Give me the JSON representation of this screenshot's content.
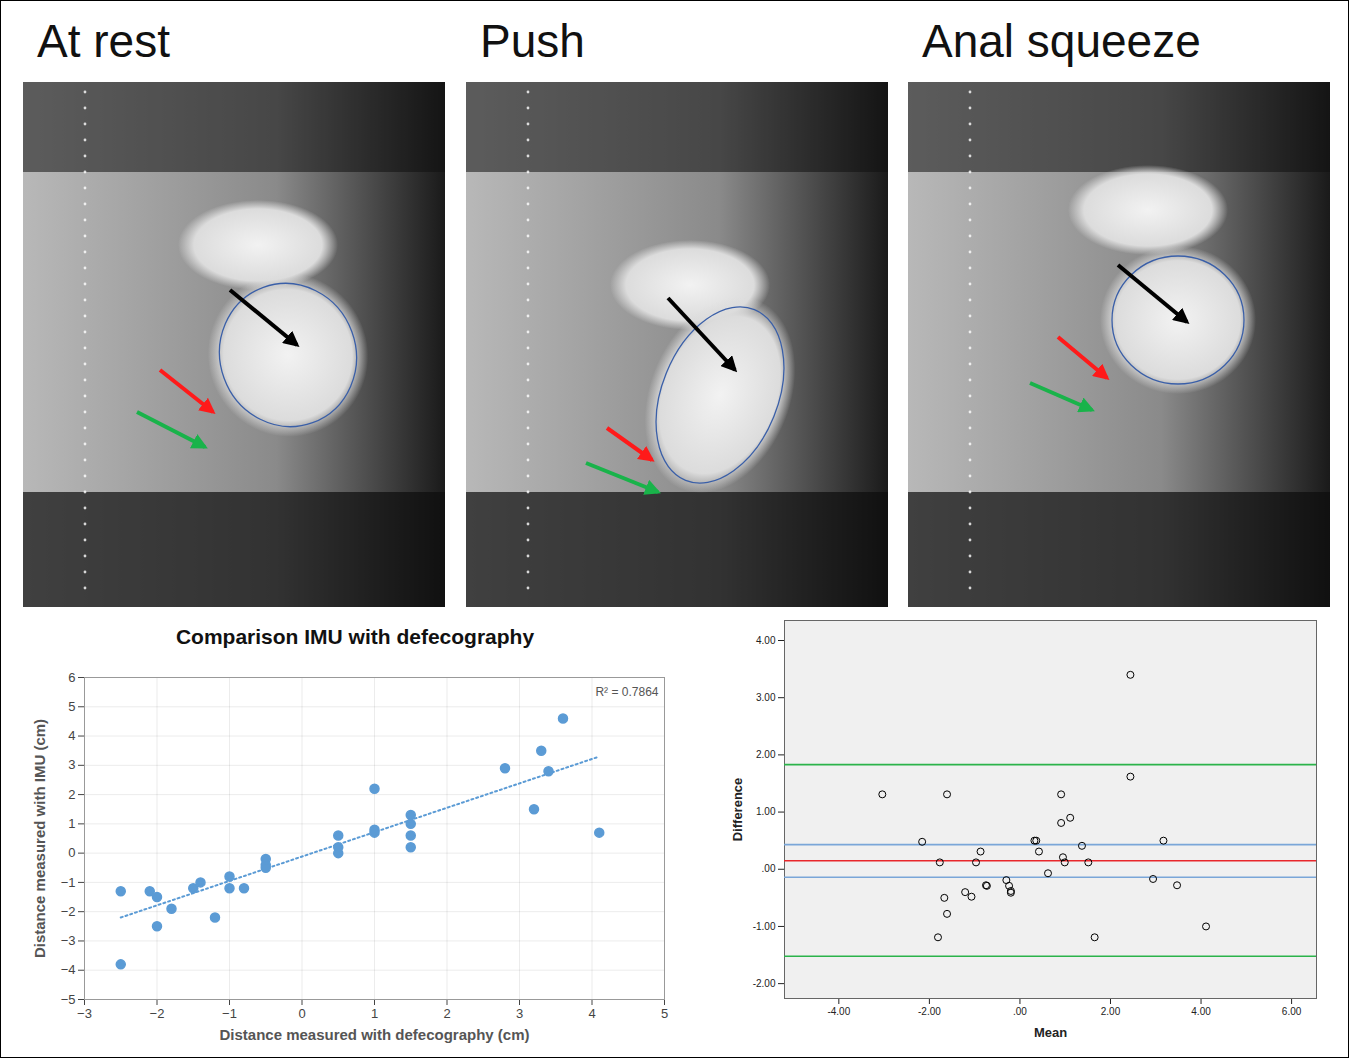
{
  "images": [
    {
      "title": "At rest"
    },
    {
      "title": "Push"
    },
    {
      "title": "Anal squeeze"
    }
  ],
  "chart_data": [
    {
      "type": "scatter",
      "title": "Comparison  IMU with defecography",
      "x_label": "Distance measured with defecography (cm)",
      "y_label": "Distance measured with IMU (cm)",
      "annotation": "R² = 0.7864",
      "x": [
        -2.5,
        -2.5,
        -2.1,
        -2.0,
        -2.0,
        -1.8,
        -1.5,
        -1.4,
        -1.2,
        -1.0,
        -1.0,
        -0.8,
        -0.5,
        -0.5,
        -0.5,
        0.5,
        0.5,
        0.5,
        1.0,
        1.0,
        1.0,
        1.5,
        1.5,
        1.5,
        1.5,
        2.8,
        3.2,
        3.3,
        3.4,
        3.6,
        4.1
      ],
      "values": [
        -1.3,
        -3.8,
        -1.3,
        -1.5,
        -2.5,
        -1.9,
        -1.2,
        -1.0,
        -2.2,
        -0.8,
        -1.2,
        -1.2,
        -0.2,
        -0.4,
        -0.5,
        0.6,
        0.2,
        0.0,
        2.2,
        0.8,
        0.7,
        1.3,
        1.0,
        0.6,
        0.2,
        2.9,
        1.5,
        3.5,
        2.8,
        4.6,
        0.7
      ],
      "color": "#5b9bd5",
      "marker": "circle",
      "trendline": {
        "x": [
          -2.5,
          4.1
        ],
        "y": [
          -2.2,
          3.3
        ],
        "line_style": "dotted",
        "color": "#5b9bd5"
      },
      "xlim": [
        -3,
        5
      ],
      "xticks": [
        -3,
        -2,
        -1,
        0,
        1,
        2,
        3,
        4,
        5
      ],
      "ylim": [
        -5,
        6
      ],
      "yticks": [
        -5,
        -4,
        -3,
        -2,
        -1,
        0,
        1,
        2,
        3,
        4,
        5,
        6
      ],
      "grid": true
    },
    {
      "type": "scatter",
      "x_label": "Mean",
      "y_label": "Difference",
      "x": [
        -3.04,
        2.44,
        2.44,
        -2.16,
        -1.61,
        -1.77,
        -1.67,
        -1.61,
        -1.81,
        -1.21,
        -1.07,
        -0.97,
        -0.87,
        -0.75,
        -0.73,
        -0.3,
        -0.24,
        -0.2,
        -0.2,
        0.32,
        0.36,
        0.42,
        0.62,
        0.91,
        0.95,
        0.99,
        1.11,
        1.37,
        1.51,
        1.65,
        2.94,
        3.17,
        3.47,
        4.11,
        0.91
      ],
      "values": [
        1.31,
        3.4,
        1.62,
        0.48,
        1.31,
        0.12,
        -0.5,
        -0.78,
        -1.19,
        -0.4,
        -0.48,
        0.12,
        0.31,
        -0.28,
        -0.29,
        -0.19,
        -0.29,
        -0.38,
        -0.41,
        0.5,
        0.5,
        0.31,
        -0.07,
        0.81,
        0.21,
        0.12,
        0.9,
        0.41,
        0.12,
        -1.19,
        -0.17,
        0.5,
        -0.28,
        -1.0,
        1.31
      ],
      "color": "#000000",
      "marker": "circle-open",
      "lines": [
        {
          "value": 0.15,
          "color": "#e8262b"
        },
        {
          "value": 0.43,
          "color": "#7aa6d8"
        },
        {
          "value": -0.14,
          "color": "#7aa6d8"
        },
        {
          "value": 1.83,
          "color": "#2bb34a"
        },
        {
          "value": -1.52,
          "color": "#2bb34a"
        }
      ],
      "xlim": [
        -5.2,
        6.55
      ],
      "xticks": [
        {
          "value": -4,
          "label": "-4.00"
        },
        {
          "value": -2,
          "label": "-2.00"
        },
        {
          "value": 0,
          "label": ".00"
        },
        {
          "value": 2,
          "label": "2.00"
        },
        {
          "value": 4,
          "label": "4.00"
        },
        {
          "value": 6,
          "label": "6.00"
        }
      ],
      "ylim": [
        -2.26,
        4.35
      ],
      "yticks": [
        {
          "value": -2,
          "label": "-2.00"
        },
        {
          "value": -1,
          "label": "-1.00"
        },
        {
          "value": 0,
          "label": ".00"
        },
        {
          "value": 1,
          "label": "1.00"
        },
        {
          "value": 2,
          "label": "2.00"
        },
        {
          "value": 3,
          "label": "3.00"
        },
        {
          "value": 4,
          "label": "4.00"
        }
      ],
      "grid": false
    }
  ]
}
